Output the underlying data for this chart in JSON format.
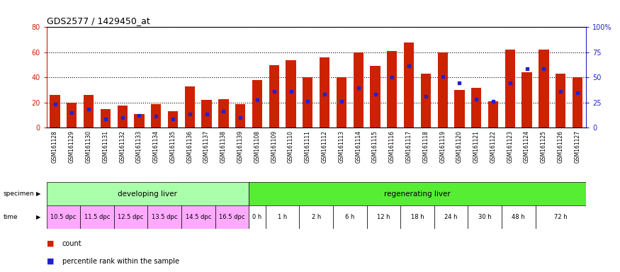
{
  "title": "GDS2577 / 1429450_at",
  "samples": [
    "GSM161128",
    "GSM161129",
    "GSM161130",
    "GSM161131",
    "GSM161132",
    "GSM161133",
    "GSM161134",
    "GSM161135",
    "GSM161136",
    "GSM161137",
    "GSM161138",
    "GSM161139",
    "GSM161108",
    "GSM161109",
    "GSM161110",
    "GSM161111",
    "GSM161112",
    "GSM161113",
    "GSM161114",
    "GSM161115",
    "GSM161116",
    "GSM161117",
    "GSM161118",
    "GSM161119",
    "GSM161120",
    "GSM161121",
    "GSM161122",
    "GSM161123",
    "GSM161124",
    "GSM161125",
    "GSM161126",
    "GSM161127"
  ],
  "counts": [
    26,
    20,
    26,
    15,
    18,
    11,
    19,
    13,
    33,
    22,
    23,
    19,
    38,
    50,
    54,
    40,
    56,
    40,
    60,
    49,
    61,
    68,
    43,
    60,
    30,
    32,
    21,
    62,
    44,
    62,
    43,
    40
  ],
  "percentile_ranks": [
    19,
    12,
    15,
    7,
    8,
    10,
    9,
    7,
    11,
    11,
    13,
    8,
    22,
    29,
    29,
    21,
    27,
    21,
    32,
    27,
    40,
    49,
    25,
    41,
    36,
    23,
    21,
    36,
    47,
    47,
    29,
    28
  ],
  "specimen_groups": [
    {
      "label": "developing liver",
      "color": "#aaffaa",
      "start": 0,
      "end": 12
    },
    {
      "label": "regenerating liver",
      "color": "#55ee33",
      "start": 12,
      "end": 32
    }
  ],
  "time_groups": [
    {
      "label": "10.5 dpc",
      "color": "#ffaaff",
      "start": 0,
      "end": 2
    },
    {
      "label": "11.5 dpc",
      "color": "#ffaaff",
      "start": 2,
      "end": 4
    },
    {
      "label": "12.5 dpc",
      "color": "#ffaaff",
      "start": 4,
      "end": 6
    },
    {
      "label": "13.5 dpc",
      "color": "#ffaaff",
      "start": 6,
      "end": 8
    },
    {
      "label": "14.5 dpc",
      "color": "#ffaaff",
      "start": 8,
      "end": 10
    },
    {
      "label": "16.5 dpc",
      "color": "#ffaaff",
      "start": 10,
      "end": 12
    },
    {
      "label": "0 h",
      "color": "#ffffff",
      "start": 12,
      "end": 13
    },
    {
      "label": "1 h",
      "color": "#ffffff",
      "start": 13,
      "end": 15
    },
    {
      "label": "2 h",
      "color": "#ffffff",
      "start": 15,
      "end": 17
    },
    {
      "label": "6 h",
      "color": "#ffffff",
      "start": 17,
      "end": 19
    },
    {
      "label": "12 h",
      "color": "#ffffff",
      "start": 19,
      "end": 21
    },
    {
      "label": "18 h",
      "color": "#ffffff",
      "start": 21,
      "end": 23
    },
    {
      "label": "24 h",
      "color": "#ffffff",
      "start": 23,
      "end": 25
    },
    {
      "label": "30 h",
      "color": "#ffffff",
      "start": 25,
      "end": 27
    },
    {
      "label": "48 h",
      "color": "#ffffff",
      "start": 27,
      "end": 29
    },
    {
      "label": "72 h",
      "color": "#ffffff",
      "start": 29,
      "end": 32
    }
  ],
  "bar_color": "#cc2200",
  "dot_color": "#2222cc",
  "ylim_left": [
    0,
    80
  ],
  "ylim_right": [
    0,
    100
  ],
  "yticks_left": [
    0,
    20,
    40,
    60,
    80
  ],
  "yticks_right": [
    0,
    25,
    50,
    75,
    100
  ],
  "background_color": "#ffffff"
}
